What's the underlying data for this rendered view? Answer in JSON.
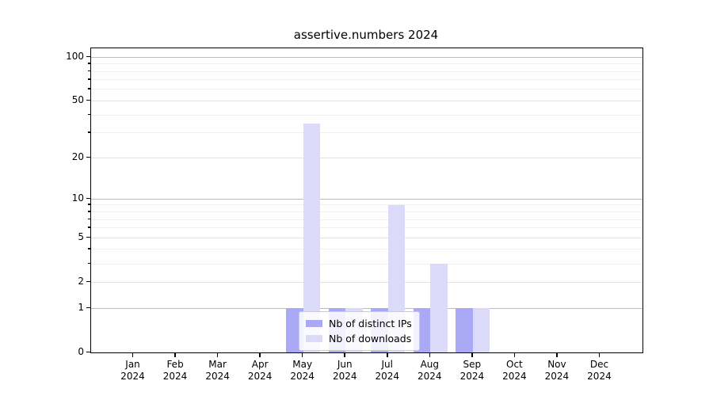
{
  "title": "assertive.numbers 2024",
  "chart_data": {
    "type": "bar",
    "title": "assertive.numbers 2024",
    "scale": "log1p",
    "categories": [
      "Jan",
      "Feb",
      "Mar",
      "Apr",
      "May",
      "Jun",
      "Jul",
      "Aug",
      "Sep",
      "Oct",
      "Nov",
      "Dec"
    ],
    "x_tick_year": "2024",
    "series": [
      {
        "name": "Nb of distinct IPs",
        "color": "#a9a9f6",
        "values": [
          0,
          0,
          0,
          0,
          1,
          1,
          1,
          1,
          1,
          0,
          0,
          0
        ]
      },
      {
        "name": "Nb of downloads",
        "color": "#dcdaf9",
        "values": [
          0,
          0,
          0,
          0,
          35,
          1,
          9,
          3,
          1,
          0,
          0,
          0
        ]
      }
    ],
    "ylim": [
      0,
      115
    ],
    "yticks_major": [
      0,
      1,
      2,
      5,
      10,
      20,
      50,
      100
    ],
    "yticks_minor": [
      3,
      4,
      6,
      7,
      8,
      9,
      30,
      40,
      60,
      70,
      80,
      90
    ],
    "grid": true,
    "legend_position": "inside-bottom-center",
    "legend_entries": [
      "Nb of distinct IPs",
      "Nb of downloads"
    ]
  },
  "colors": {
    "grid_emphasis": "#bcbcbc",
    "grid_light": "#e4e4e4",
    "grid_minor": "#efefef",
    "axis": "#000000",
    "bar_ips": "#a9a9f6",
    "bar_downloads": "#dcdaf9",
    "legend_border": "#cccccc"
  }
}
